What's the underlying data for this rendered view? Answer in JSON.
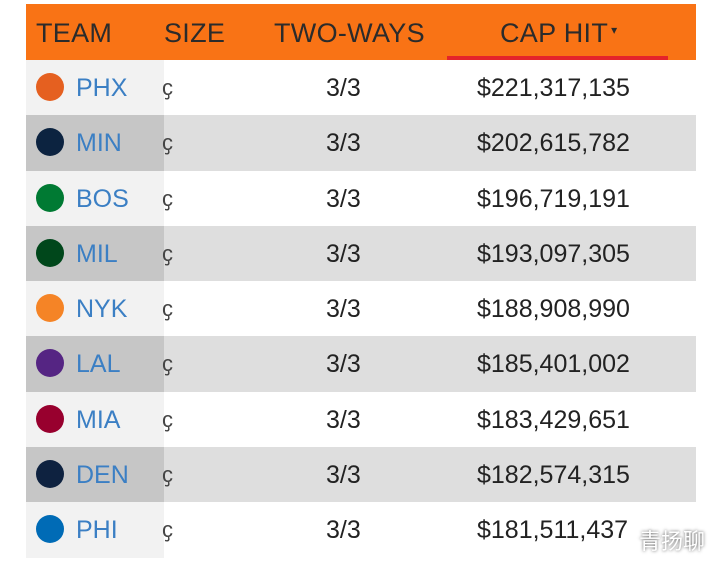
{
  "header": {
    "team": "TEAM",
    "size": "SIZE",
    "two_ways": "TWO-WAYS",
    "cap_hit": "CAP HIT",
    "sort_arrow": "▾"
  },
  "rows": [
    {
      "abbr": "PHX",
      "size_fragment": "ҫ",
      "two_ways": "3/3",
      "cap_hit": "$221,317,135",
      "logo_icon": "suns-logo-icon",
      "logo_color": "#e56020"
    },
    {
      "abbr": "MIN",
      "size_fragment": "ҫ",
      "two_ways": "3/3",
      "cap_hit": "$202,615,782",
      "logo_icon": "timberwolves-logo-icon",
      "logo_color": "#0c2340"
    },
    {
      "abbr": "BOS",
      "size_fragment": "ҫ",
      "two_ways": "3/3",
      "cap_hit": "$196,719,191",
      "logo_icon": "celtics-logo-icon",
      "logo_color": "#007a33"
    },
    {
      "abbr": "MIL",
      "size_fragment": "ҫ",
      "two_ways": "3/3",
      "cap_hit": "$193,097,305",
      "logo_icon": "bucks-logo-icon",
      "logo_color": "#00471b"
    },
    {
      "abbr": "NYK",
      "size_fragment": "ҫ",
      "two_ways": "3/3",
      "cap_hit": "$188,908,990",
      "logo_icon": "knicks-logo-icon",
      "logo_color": "#f58426"
    },
    {
      "abbr": "LAL",
      "size_fragment": "ҫ",
      "two_ways": "3/3",
      "cap_hit": "$185,401,002",
      "logo_icon": "lakers-logo-icon",
      "logo_color": "#552583"
    },
    {
      "abbr": "MIA",
      "size_fragment": "ҫ",
      "two_ways": "3/3",
      "cap_hit": "$183,429,651",
      "logo_icon": "heat-logo-icon",
      "logo_color": "#98002e"
    },
    {
      "abbr": "DEN",
      "size_fragment": "ҫ",
      "two_ways": "3/3",
      "cap_hit": "$182,574,315",
      "logo_icon": "nuggets-logo-icon",
      "logo_color": "#0e2240"
    },
    {
      "abbr": "PHI",
      "size_fragment": "ҫ",
      "two_ways": "3/3",
      "cap_hit": "$181,511,437",
      "logo_icon": "76ers-logo-icon",
      "logo_color": "#006bb6"
    }
  ],
  "watermark": "青扬聊",
  "colors": {
    "header_bg": "#f97315",
    "sort_underline": "#e4242a",
    "team_link": "#3b7fc4"
  }
}
